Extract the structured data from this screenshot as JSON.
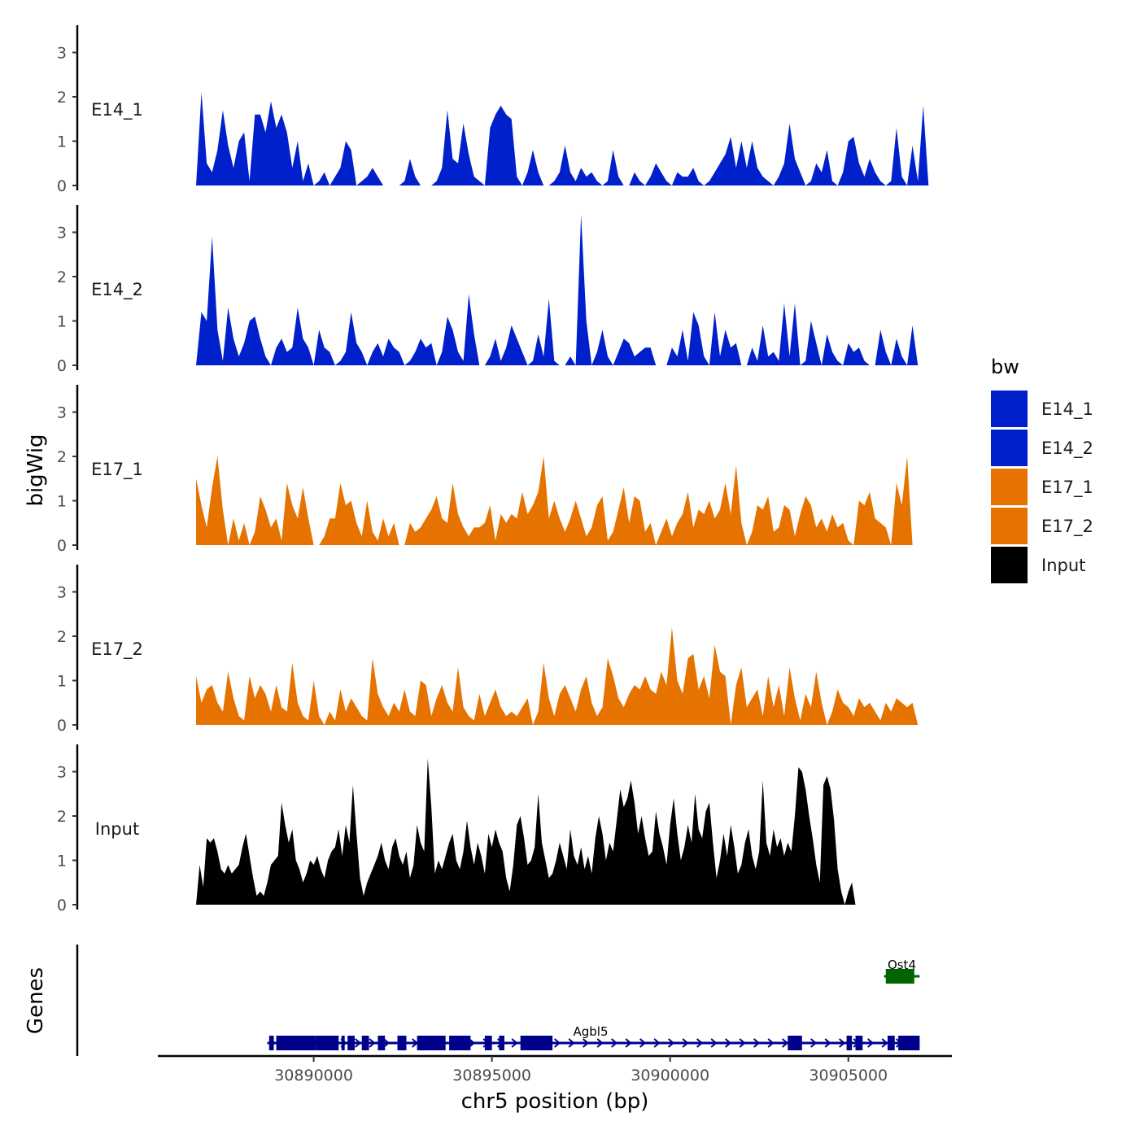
{
  "chart_data": {
    "type": "area",
    "genome": {
      "chromosome": "chr5",
      "x_range": [
        30886500,
        30907000
      ]
    },
    "tracks_y_range": [
      0,
      3.5
    ],
    "y_ticks": [
      0,
      1,
      2,
      3
    ],
    "y_axis_title": "bigWig",
    "x_axis_title": "chr5 position (bp)",
    "x_ticks": [
      30890000,
      30895000,
      30900000,
      30905000
    ],
    "x_tick_labels": [
      "30890000",
      "30895000",
      "30900000",
      "30905000"
    ],
    "genes_track_title": "Genes",
    "legend": {
      "title": "bw",
      "position": "right",
      "entries": [
        {
          "label": "E14_1",
          "color": "#0020CC"
        },
        {
          "label": "E14_2",
          "color": "#0020CC"
        },
        {
          "label": "E17_1",
          "color": "#E67300"
        },
        {
          "label": "E17_2",
          "color": "#E67300"
        },
        {
          "label": "Input",
          "color": "#000000"
        }
      ]
    },
    "series": [
      {
        "name": "E14_1",
        "color": "#0020CC",
        "x_step": 150,
        "x_start": 30886700,
        "values": [
          0.0,
          2.1,
          0.5,
          0.3,
          0.8,
          1.7,
          0.9,
          0.4,
          1.0,
          1.2,
          0.1,
          1.6,
          1.6,
          1.2,
          1.9,
          1.3,
          1.6,
          1.2,
          0.4,
          1.0,
          0.1,
          0.5,
          0.0,
          0.1,
          0.3,
          0.0,
          0.2,
          0.4,
          1.0,
          0.8,
          0.0,
          0.1,
          0.2,
          0.4,
          0.2,
          0.0,
          0.0,
          0.0,
          0.0,
          0.1,
          0.6,
          0.2,
          0.0,
          0.0,
          0.0,
          0.1,
          0.4,
          1.7,
          0.6,
          0.5,
          1.4,
          0.7,
          0.2,
          0.1,
          0.0,
          1.3,
          1.6,
          1.8,
          1.6,
          1.5,
          0.2,
          0.0,
          0.3,
          0.8,
          0.3,
          0.0,
          0.0,
          0.1,
          0.3,
          0.9,
          0.3,
          0.1,
          0.4,
          0.2,
          0.3,
          0.1,
          0.0,
          0.1,
          0.8,
          0.2,
          0.0,
          0.0,
          0.3,
          0.1,
          0.0,
          0.2,
          0.5,
          0.3,
          0.1,
          0.0,
          0.3,
          0.2,
          0.2,
          0.4,
          0.1,
          0.0,
          0.1,
          0.3,
          0.5,
          0.7,
          1.1,
          0.4,
          1.0,
          0.4,
          1.0,
          0.4,
          0.2,
          0.1,
          0.0,
          0.2,
          0.5,
          1.4,
          0.6,
          0.3,
          0.0,
          0.1,
          0.5,
          0.3,
          0.8,
          0.1,
          0.0,
          0.3,
          1.0,
          1.1,
          0.5,
          0.2,
          0.6,
          0.3,
          0.1,
          0.0,
          0.1,
          1.3,
          0.2,
          0.0,
          0.9,
          0.1,
          1.8,
          0.0
        ]
      },
      {
        "name": "E14_2",
        "color": "#0020CC",
        "x_step": 150,
        "x_start": 30886700,
        "values": [
          0.0,
          1.2,
          1.0,
          2.9,
          0.8,
          0.1,
          1.3,
          0.6,
          0.2,
          0.5,
          1.0,
          1.1,
          0.6,
          0.2,
          0.0,
          0.4,
          0.6,
          0.3,
          0.4,
          1.3,
          0.6,
          0.4,
          0.0,
          0.8,
          0.4,
          0.3,
          0.0,
          0.1,
          0.3,
          1.2,
          0.5,
          0.3,
          0.0,
          0.3,
          0.5,
          0.2,
          0.6,
          0.4,
          0.3,
          0.0,
          0.1,
          0.3,
          0.6,
          0.4,
          0.5,
          0.0,
          0.3,
          1.1,
          0.8,
          0.3,
          0.1,
          1.6,
          0.7,
          0.0,
          0.0,
          0.2,
          0.6,
          0.1,
          0.4,
          0.9,
          0.6,
          0.3,
          0.0,
          0.1,
          0.7,
          0.2,
          1.5,
          0.1,
          0.0,
          0.0,
          0.2,
          0.0,
          3.4,
          1.0,
          0.0,
          0.3,
          0.8,
          0.2,
          0.0,
          0.3,
          0.6,
          0.5,
          0.2,
          0.3,
          0.4,
          0.4,
          0.0,
          0.0,
          0.0,
          0.4,
          0.2,
          0.8,
          0.1,
          1.2,
          0.9,
          0.2,
          0.0,
          1.2,
          0.2,
          0.8,
          0.4,
          0.5,
          0.0,
          0.0,
          0.4,
          0.1,
          0.9,
          0.2,
          0.3,
          0.1,
          1.4,
          0.2,
          1.4,
          0.0,
          0.1,
          1.0,
          0.5,
          0.0,
          0.7,
          0.3,
          0.1,
          0.0,
          0.5,
          0.3,
          0.4,
          0.1,
          0.0,
          0.0,
          0.8,
          0.3,
          0.0,
          0.6,
          0.2,
          0.0,
          0.9,
          0.0
        ]
      },
      {
        "name": "E17_1",
        "color": "#E67300",
        "x_step": 150,
        "x_start": 30886700,
        "values": [
          1.5,
          0.9,
          0.4,
          1.3,
          2.0,
          0.8,
          0.0,
          0.6,
          0.1,
          0.5,
          0.0,
          0.3,
          1.1,
          0.8,
          0.4,
          0.6,
          0.1,
          1.4,
          0.9,
          0.6,
          1.3,
          0.6,
          0.0,
          0.0,
          0.2,
          0.6,
          0.6,
          1.4,
          0.9,
          1.0,
          0.5,
          0.2,
          1.0,
          0.3,
          0.1,
          0.6,
          0.2,
          0.5,
          0.0,
          0.0,
          0.5,
          0.3,
          0.4,
          0.6,
          0.8,
          1.1,
          0.6,
          0.5,
          1.4,
          0.7,
          0.4,
          0.2,
          0.4,
          0.4,
          0.5,
          0.9,
          0.1,
          0.7,
          0.5,
          0.7,
          0.6,
          1.2,
          0.7,
          0.9,
          1.2,
          2.0,
          0.6,
          1.0,
          0.6,
          0.3,
          0.6,
          1.0,
          0.6,
          0.2,
          0.4,
          0.9,
          1.1,
          0.1,
          0.3,
          0.8,
          1.3,
          0.5,
          1.1,
          1.0,
          0.3,
          0.5,
          0.0,
          0.3,
          0.6,
          0.2,
          0.5,
          0.7,
          1.2,
          0.4,
          0.8,
          0.7,
          1.0,
          0.6,
          0.8,
          1.4,
          0.7,
          1.8,
          0.5,
          0.0,
          0.3,
          0.9,
          0.8,
          1.1,
          0.3,
          0.4,
          0.9,
          0.8,
          0.2,
          0.7,
          1.1,
          0.9,
          0.4,
          0.6,
          0.3,
          0.7,
          0.4,
          0.5,
          0.1,
          0.0,
          1.0,
          0.9,
          1.2,
          0.6,
          0.5,
          0.4,
          0.0,
          1.4,
          0.9,
          2.0,
          0.0
        ]
      },
      {
        "name": "E17_2",
        "color": "#E67300",
        "x_step": 150,
        "x_start": 30886700,
        "values": [
          1.1,
          0.5,
          0.8,
          0.9,
          0.5,
          0.3,
          1.2,
          0.6,
          0.2,
          0.1,
          1.1,
          0.6,
          0.9,
          0.7,
          0.3,
          0.9,
          0.4,
          0.3,
          1.4,
          0.5,
          0.2,
          0.1,
          1.0,
          0.2,
          0.0,
          0.3,
          0.1,
          0.8,
          0.3,
          0.6,
          0.4,
          0.2,
          0.1,
          1.5,
          0.7,
          0.4,
          0.2,
          0.5,
          0.3,
          0.8,
          0.3,
          0.2,
          1.0,
          0.9,
          0.2,
          0.6,
          0.9,
          0.5,
          0.3,
          1.3,
          0.4,
          0.2,
          0.1,
          0.7,
          0.2,
          0.5,
          0.8,
          0.4,
          0.2,
          0.3,
          0.2,
          0.4,
          0.6,
          0.0,
          0.3,
          1.4,
          0.6,
          0.2,
          0.7,
          0.9,
          0.6,
          0.3,
          0.8,
          1.1,
          0.5,
          0.2,
          0.4,
          1.5,
          1.1,
          0.6,
          0.4,
          0.7,
          0.9,
          0.8,
          1.1,
          0.8,
          0.7,
          1.2,
          0.9,
          2.2,
          1.0,
          0.7,
          1.5,
          1.6,
          0.8,
          1.1,
          0.6,
          1.8,
          1.2,
          1.1,
          0.0,
          0.9,
          1.3,
          0.4,
          0.6,
          0.8,
          0.2,
          1.1,
          0.4,
          0.9,
          0.2,
          1.3,
          0.6,
          0.1,
          0.7,
          0.4,
          1.2,
          0.5,
          0.0,
          0.3,
          0.8,
          0.5,
          0.4,
          0.2,
          0.6,
          0.4,
          0.5,
          0.3,
          0.1,
          0.5,
          0.3,
          0.6,
          0.5,
          0.4,
          0.5,
          0.0
        ]
      },
      {
        "name": "Input",
        "color": "#000000",
        "x_step": 100,
        "x_start": 30886700,
        "values": [
          0.0,
          0.9,
          0.4,
          1.5,
          1.4,
          1.5,
          1.2,
          0.8,
          0.7,
          0.9,
          0.7,
          0.8,
          0.9,
          1.3,
          1.6,
          1.1,
          0.6,
          0.2,
          0.3,
          0.2,
          0.5,
          0.9,
          1.0,
          1.1,
          2.3,
          1.8,
          1.4,
          1.7,
          1.0,
          0.8,
          0.5,
          0.7,
          1.0,
          0.9,
          1.1,
          0.8,
          0.6,
          1.0,
          1.2,
          1.3,
          1.7,
          1.1,
          1.8,
          1.4,
          2.7,
          1.6,
          0.6,
          0.2,
          0.5,
          0.7,
          0.9,
          1.1,
          1.4,
          1.0,
          0.8,
          1.3,
          1.5,
          1.1,
          0.9,
          1.2,
          0.6,
          0.9,
          1.8,
          1.4,
          1.2,
          3.3,
          2.2,
          0.7,
          1.0,
          0.8,
          1.1,
          1.4,
          1.6,
          1.0,
          0.8,
          1.2,
          1.9,
          1.3,
          0.9,
          1.4,
          1.1,
          0.7,
          1.6,
          1.3,
          1.7,
          1.4,
          1.2,
          0.6,
          0.3,
          0.9,
          1.8,
          2.0,
          1.5,
          0.9,
          1.0,
          1.3,
          2.5,
          1.4,
          1.0,
          0.6,
          0.7,
          1.0,
          1.4,
          1.1,
          0.8,
          1.7,
          1.1,
          0.9,
          1.3,
          0.8,
          1.1,
          0.7,
          1.5,
          2.0,
          1.6,
          1.0,
          1.4,
          1.2,
          1.9,
          2.6,
          2.2,
          2.4,
          2.8,
          2.3,
          1.6,
          2.0,
          1.5,
          1.1,
          1.2,
          2.1,
          1.6,
          1.3,
          0.9,
          1.8,
          2.4,
          1.6,
          1.0,
          1.3,
          1.8,
          1.4,
          2.5,
          1.7,
          1.5,
          2.1,
          2.3,
          1.4,
          0.6,
          1.0,
          1.6,
          1.1,
          1.8,
          1.3,
          0.7,
          0.9,
          1.4,
          1.7,
          1.1,
          0.8,
          1.2,
          2.8,
          1.4,
          1.1,
          1.7,
          1.3,
          1.5,
          1.1,
          1.4,
          1.2,
          2.0,
          3.1,
          3.0,
          2.6,
          2.0,
          1.5,
          0.9,
          0.5,
          2.7,
          2.9,
          2.6,
          1.9,
          0.8,
          0.3,
          0.0,
          0.3,
          0.5,
          0.0
        ]
      }
    ],
    "genes": [
      {
        "name": "Agbl5",
        "color": "#00008B",
        "row": "lower",
        "strand": "+",
        "start": 30888700,
        "end": 30907000,
        "exons": [
          [
            30888750,
            30888880
          ],
          [
            30888950,
            30890050
          ],
          [
            30890050,
            30890700
          ],
          [
            30890780,
            30890870
          ],
          [
            30890950,
            30891150
          ],
          [
            30891350,
            30891550
          ],
          [
            30891800,
            30892000
          ],
          [
            30892350,
            30892600
          ],
          [
            30892900,
            30893700
          ],
          [
            30893800,
            30894400
          ],
          [
            30894800,
            30895000
          ],
          [
            30895200,
            30895350
          ],
          [
            30895800,
            30896700
          ],
          [
            30903300,
            30903700
          ],
          [
            30904950,
            30905100
          ],
          [
            30905200,
            30905400
          ],
          [
            30906100,
            30906300
          ],
          [
            30906400,
            30907000
          ]
        ]
      },
      {
        "name": "Ost4",
        "color": "#006400",
        "row": "upper",
        "strand": "+",
        "start": 30906000,
        "end": 30907000,
        "exons": [
          [
            30906050,
            30906850
          ]
        ]
      }
    ]
  }
}
